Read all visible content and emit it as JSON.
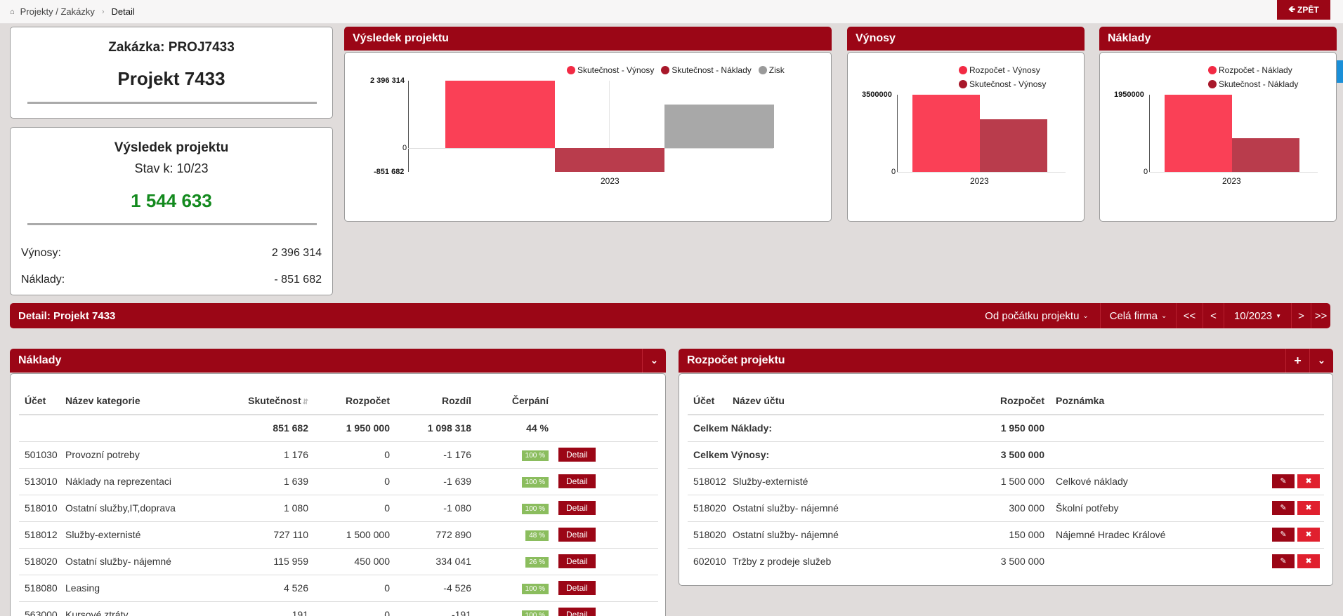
{
  "breadcrumb": {
    "link": "Projekty / Zakázky",
    "current": "Detail"
  },
  "back_label": "ZPĚT",
  "project_card": {
    "order_label": "Zakázka: PROJ7433",
    "name": "Projekt 7433"
  },
  "result_card": {
    "title": "Výsledek projektu",
    "state": "Stav k: 10/23",
    "value": "1 544 633",
    "income_label": "Výnosy:",
    "income_value": "2 396 314",
    "costs_label": "Náklady:",
    "costs_value": "- 851 682"
  },
  "charts": {
    "result": {
      "header": "Výsledek projektu",
      "legend": [
        "Skutečnost - Výnosy",
        "Skutečnost - Náklady",
        "Zisk"
      ],
      "colors": [
        "#fa4056",
        "#b93c4c",
        "#a8a8a8"
      ],
      "ticks": [
        "2 396 314",
        "0",
        "-851 682"
      ],
      "category": "2023"
    },
    "income": {
      "header": "Výnosy",
      "legend": [
        "Rozpočet - Výnosy",
        "Skutečnost - Výnosy"
      ],
      "ticks": [
        "3500000",
        "0"
      ],
      "category": "2023"
    },
    "costs": {
      "header": "Náklady",
      "legend": [
        "Rozpočet - Náklady",
        "Skutečnost - Náklady"
      ],
      "ticks": [
        "1950000",
        "0"
      ],
      "category": "2023"
    }
  },
  "chart_data": [
    {
      "type": "bar",
      "categories": [
        "2023"
      ],
      "series": [
        {
          "name": "Skutečnost - Výnosy",
          "values": [
            2396314
          ]
        },
        {
          "name": "Skutečnost - Náklady",
          "values": [
            -851682
          ]
        },
        {
          "name": "Zisk",
          "values": [
            1544633
          ]
        }
      ],
      "ylim": [
        -851682,
        2396314
      ],
      "legend": "top-right"
    },
    {
      "type": "bar",
      "categories": [
        "2023"
      ],
      "series": [
        {
          "name": "Rozpočet - Výnosy",
          "values": [
            3500000
          ]
        },
        {
          "name": "Skutečnost - Výnosy",
          "values": [
            2396314
          ]
        }
      ],
      "ylim": [
        0,
        3500000
      ],
      "legend": "top"
    },
    {
      "type": "bar",
      "categories": [
        "2023"
      ],
      "series": [
        {
          "name": "Rozpočet - Náklady",
          "values": [
            1950000
          ]
        },
        {
          "name": "Skutečnost - Náklady",
          "values": [
            851682
          ]
        }
      ],
      "ylim": [
        0,
        1950000
      ],
      "legend": "top"
    }
  ],
  "detail_bar": {
    "title": "Detail: Projekt 7433",
    "range": "Od počátku projektu",
    "scope": "Celá firma",
    "first": "<<",
    "prev": "<",
    "period": "10/2023",
    "next": ">",
    "last": ">>"
  },
  "costs_table": {
    "header": "Náklady",
    "columns": [
      "Účet",
      "Název kategorie",
      "Skutečnost",
      "Rozpočet",
      "Rozdíl",
      "Čerpání"
    ],
    "totals": {
      "actual": "851 682",
      "budget": "1 950 000",
      "diff": "1 098 318",
      "pct": "44 %"
    },
    "detail_label": "Detail",
    "rows": [
      {
        "account": "501030",
        "name": "Provozní potreby",
        "actual": "1 176",
        "budget": "0",
        "diff": "-1 176",
        "pct": "100 %"
      },
      {
        "account": "513010",
        "name": "Náklady na reprezentaci",
        "actual": "1 639",
        "budget": "0",
        "diff": "-1 639",
        "pct": "100 %"
      },
      {
        "account": "518010",
        "name": "Ostatní služby,IT,doprava",
        "actual": "1 080",
        "budget": "0",
        "diff": "-1 080",
        "pct": "100 %"
      },
      {
        "account": "518012",
        "name": "Služby-externisté",
        "actual": "727 110",
        "budget": "1 500 000",
        "diff": "772 890",
        "pct": "48 %"
      },
      {
        "account": "518020",
        "name": "Ostatní služby- nájemné",
        "actual": "115 959",
        "budget": "450 000",
        "diff": "334 041",
        "pct": "26 %"
      },
      {
        "account": "518080",
        "name": "Leasing",
        "actual": "4 526",
        "budget": "0",
        "diff": "-4 526",
        "pct": "100 %"
      },
      {
        "account": "563000",
        "name": "Kursové ztráty",
        "actual": "191",
        "budget": "0",
        "diff": "-191",
        "pct": "100 %"
      }
    ]
  },
  "budget_table": {
    "header": "Rozpočet projektu",
    "add": "+",
    "columns": [
      "Účet",
      "Název účtu",
      "Rozpočet",
      "Poznámka"
    ],
    "totals": [
      {
        "label": "Celkem Náklady:",
        "value": "1 950 000"
      },
      {
        "label": "Celkem Výnosy:",
        "value": "3 500 000"
      }
    ],
    "rows": [
      {
        "account": "518012",
        "name": "Služby-externisté",
        "budget": "1 500 000",
        "note": "Celkové náklady"
      },
      {
        "account": "518020",
        "name": "Ostatní služby- nájemné",
        "budget": "300 000",
        "note": "Školní potřeby"
      },
      {
        "account": "518020",
        "name": "Ostatní služby- nájemné",
        "budget": "150 000",
        "note": "Nájemné Hradec Králové"
      },
      {
        "account": "602010",
        "name": "Tržby z prodeje služeb",
        "budget": "3 500 000",
        "note": ""
      }
    ]
  }
}
